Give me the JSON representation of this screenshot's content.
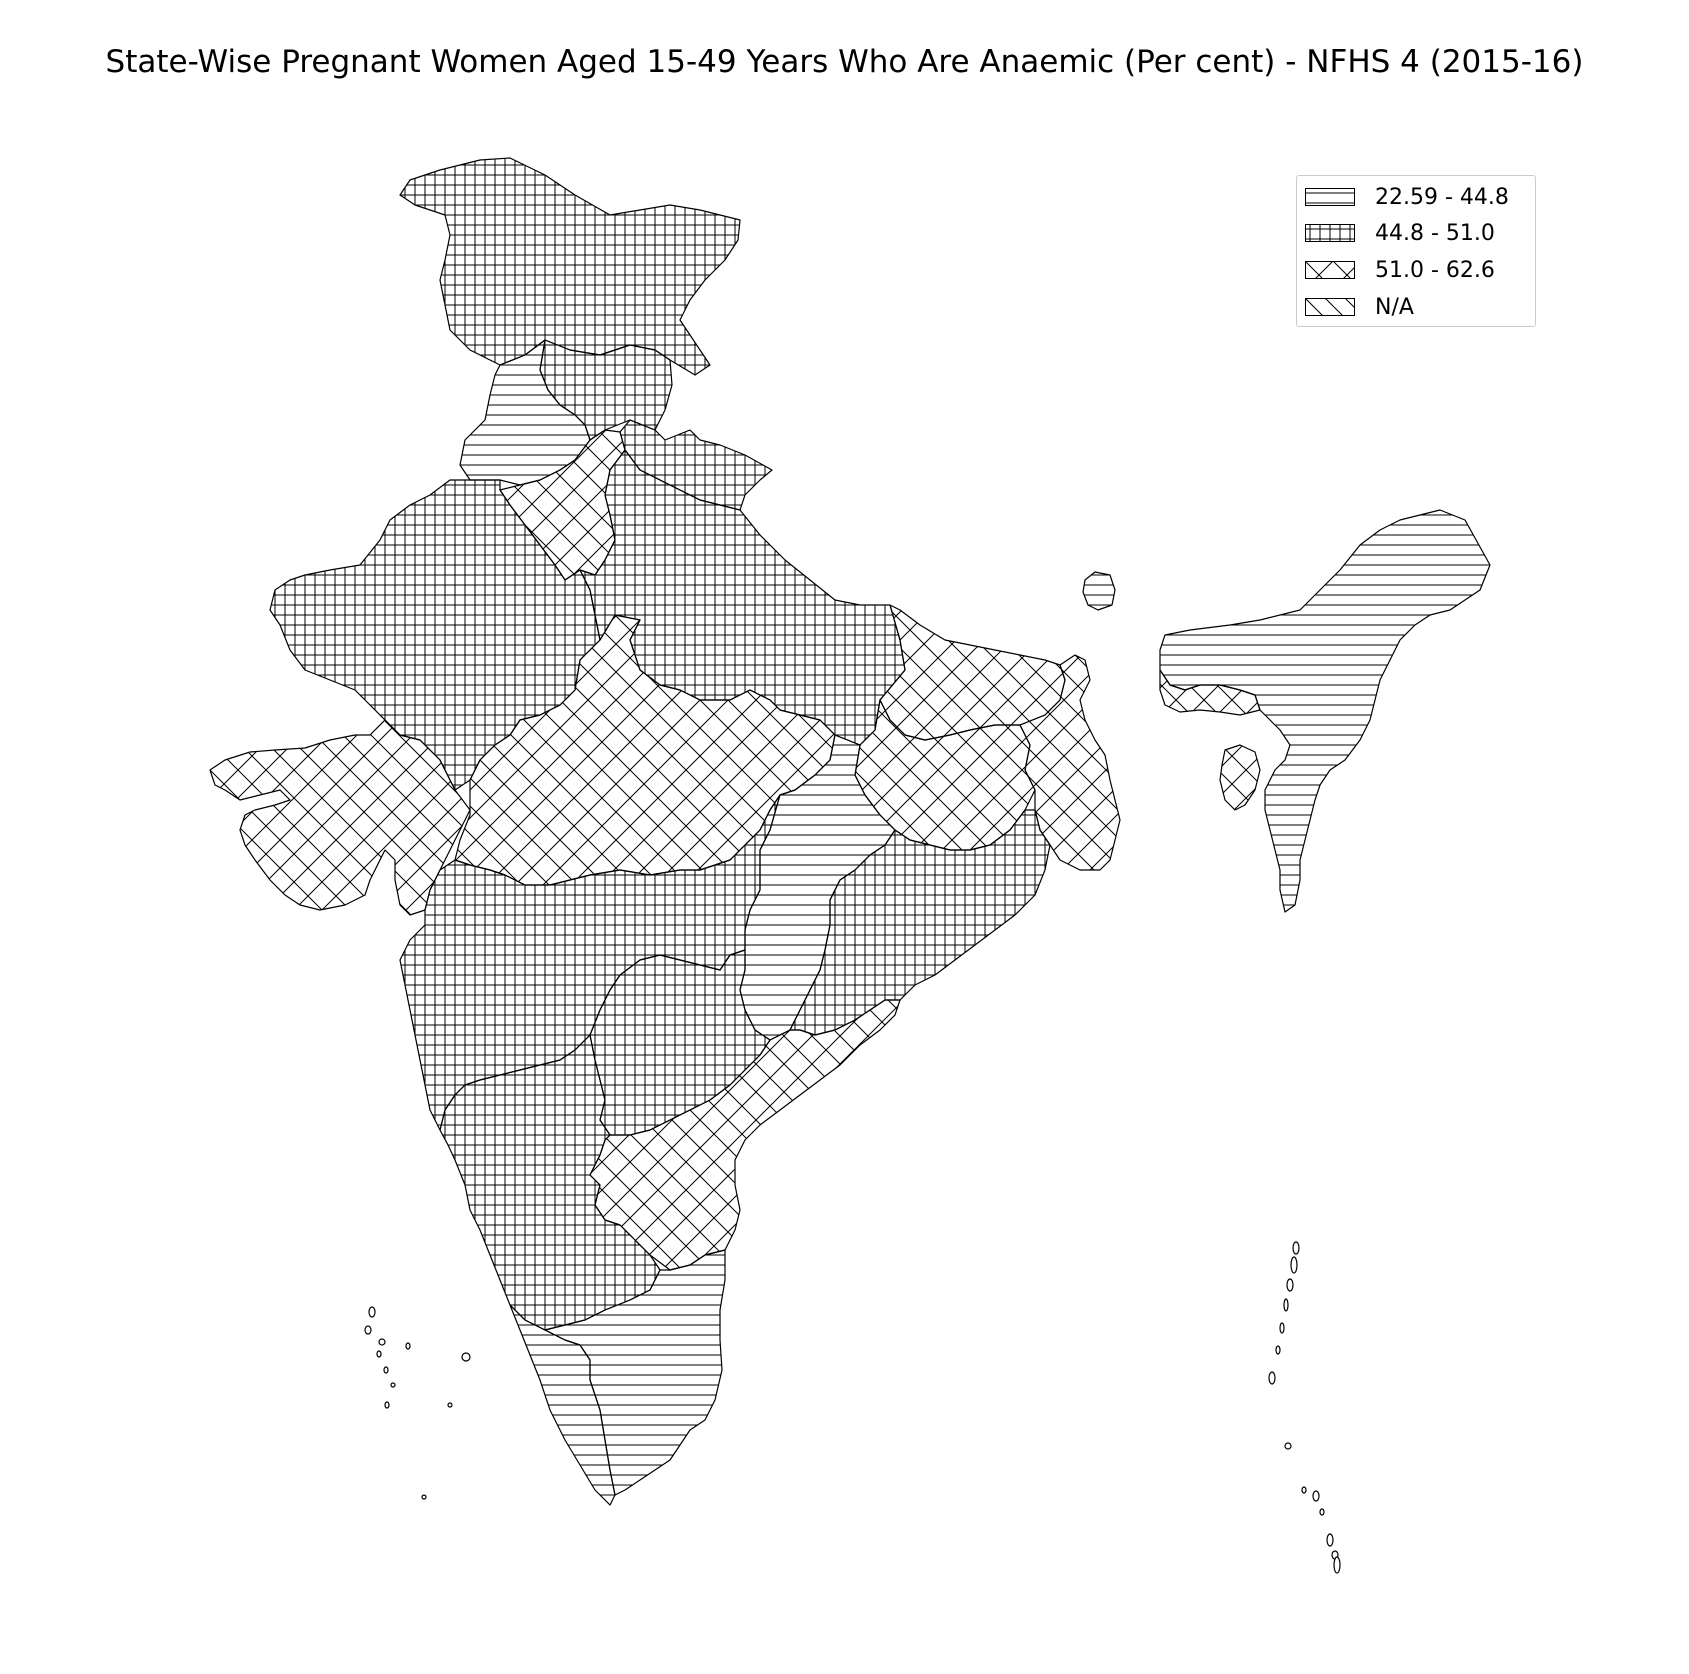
{
  "title": "State-Wise Pregnant Women Aged 15-49 Years Who Are Anaemic (Per cent) - NFHS 4 (2015-16)",
  "legend": {
    "items": [
      {
        "label": "22.59 - 44.8",
        "pattern": "horizontal"
      },
      {
        "label": "44.8 - 51.0",
        "pattern": "grid"
      },
      {
        "label": "51.0 - 62.6",
        "pattern": "diagonal-cross"
      },
      {
        "label": "N/A",
        "pattern": "diagonal"
      }
    ]
  },
  "colors": {
    "stroke": "#000000",
    "background": "#ffffff",
    "legend_border": "#cccccc"
  },
  "map_regions": [
    {
      "name": "Jammu and Kashmir",
      "class": "44.8 - 51.0"
    },
    {
      "name": "Himachal Pradesh",
      "class": "44.8 - 51.0"
    },
    {
      "name": "Punjab",
      "class": "22.59 - 44.8"
    },
    {
      "name": "Uttarakhand",
      "class": "44.8 - 51.0"
    },
    {
      "name": "Haryana",
      "class": "51.0 - 62.6"
    },
    {
      "name": "Rajasthan",
      "class": "44.8 - 51.0"
    },
    {
      "name": "Uttar Pradesh",
      "class": "44.8 - 51.0"
    },
    {
      "name": "Gujarat",
      "class": "51.0 - 62.6"
    },
    {
      "name": "Madhya Pradesh",
      "class": "51.0 - 62.6"
    },
    {
      "name": "Bihar",
      "class": "51.0 - 62.6"
    },
    {
      "name": "Jharkhand",
      "class": "51.0 - 62.6"
    },
    {
      "name": "West Bengal",
      "class": "51.0 - 62.6"
    },
    {
      "name": "Chhattisgarh",
      "class": "22.59 - 44.8"
    },
    {
      "name": "Odisha",
      "class": "44.8 - 51.0"
    },
    {
      "name": "Maharashtra",
      "class": "44.8 - 51.0"
    },
    {
      "name": "Telangana",
      "class": "44.8 - 51.0"
    },
    {
      "name": "Andhra Pradesh",
      "class": "51.0 - 62.6"
    },
    {
      "name": "Karnataka",
      "class": "44.8 - 51.0"
    },
    {
      "name": "Tamil Nadu",
      "class": "22.59 - 44.8"
    },
    {
      "name": "Kerala",
      "class": "22.59 - 44.8"
    },
    {
      "name": "Sikkim",
      "class": "22.59 - 44.8"
    },
    {
      "name": "Northeast States",
      "class": "22.59 - 44.8"
    },
    {
      "name": "Meghalaya",
      "class": "51.0 - 62.6"
    },
    {
      "name": "Tripura",
      "class": "51.0 - 62.6"
    }
  ]
}
